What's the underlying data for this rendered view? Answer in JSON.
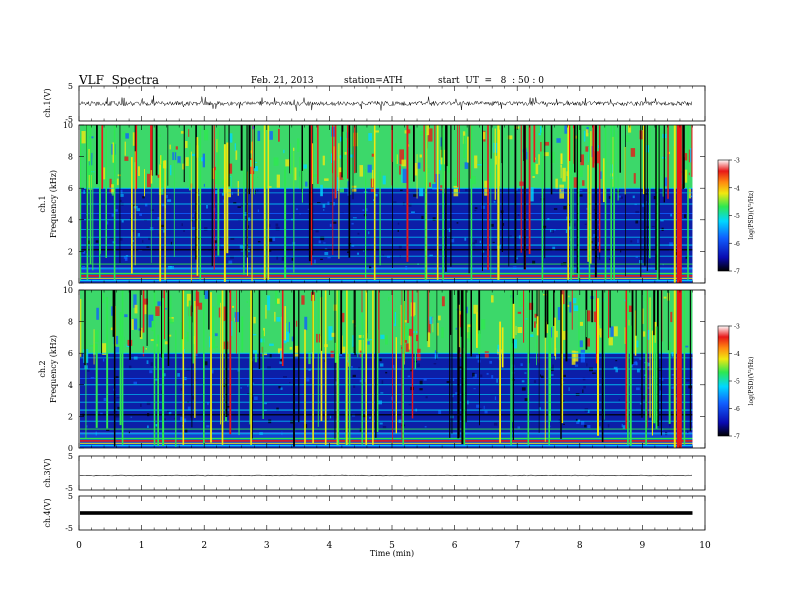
{
  "header": {
    "title": "VLF  Spectra",
    "date": "Feb. 21, 2013",
    "station": "station=ATH",
    "start": "start  UT  =   8  : 50 : 0"
  },
  "chart_data": {
    "type": "heatmap",
    "x_axis": {
      "label": "Time  (min)",
      "range": [
        0,
        10
      ],
      "ticks": [
        "0",
        "1",
        "2",
        "3",
        "4",
        "5",
        "6",
        "7",
        "8",
        "9",
        "10"
      ],
      "data_end": 9.8
    },
    "waveforms": [
      {
        "id": "ch1",
        "ylabel": "ch.1(V)",
        "ticks": [
          "5",
          "-5"
        ],
        "range": [
          -5,
          5
        ],
        "style": "noisy"
      },
      {
        "id": "ch3",
        "ylabel": "ch.3(V)",
        "ticks": [
          "5",
          "-5"
        ],
        "range": [
          -5,
          5
        ],
        "style": "flat"
      },
      {
        "id": "ch4",
        "ylabel": "ch.4(V)",
        "ticks": [
          "5",
          "-5"
        ],
        "range": [
          -5,
          5
        ],
        "style": "band"
      }
    ],
    "spectrograms": [
      {
        "id": "ch1",
        "ylabel_top": "ch.1",
        "ylabel": "Frequency  (kHz)",
        "y_range": [
          0,
          10
        ],
        "y_ticks": [
          "0",
          "2",
          "4",
          "6",
          "8",
          "10"
        ]
      },
      {
        "id": "ch2",
        "ylabel_top": "ch.2",
        "ylabel": "Frequency  (kHz)",
        "y_range": [
          0,
          10
        ],
        "y_ticks": [
          "0",
          "2",
          "4",
          "6",
          "8",
          "10"
        ]
      }
    ],
    "colorbar": {
      "label": "log(PSD)(V²/Hz)",
      "range": [
        -7,
        -3
      ],
      "ticks": [
        "-3",
        "-4",
        "-5",
        "-6",
        "-7"
      ]
    },
    "colors": {
      "black": "#000000",
      "blue": "#0a1fb0",
      "cyan": "#00d8ff",
      "green": "#2ee850",
      "yellow": "#f0e810",
      "red": "#e81818",
      "white": "#ffffff"
    }
  }
}
